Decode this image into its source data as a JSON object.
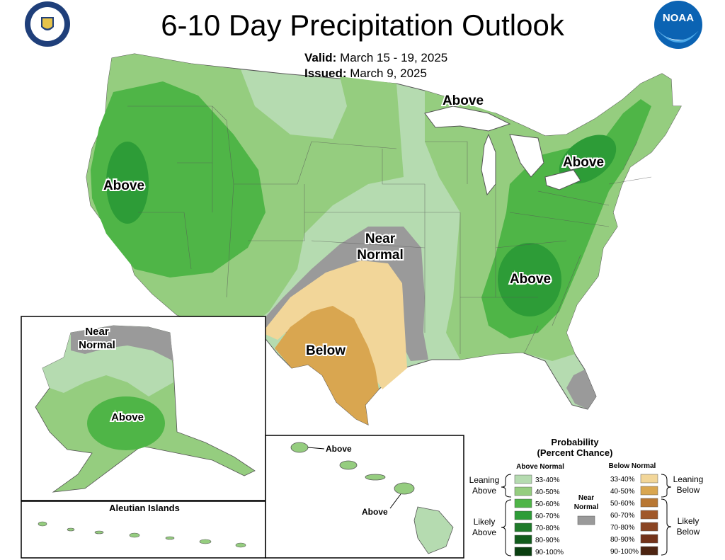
{
  "title": "6-10 Day Precipitation Outlook",
  "valid": {
    "label": "Valid:",
    "value": "March 15 - 19, 2025"
  },
  "issued": {
    "label": "Issued:",
    "value": "March 9, 2025"
  },
  "logos": {
    "left": "department-of-commerce-seal",
    "right": "noaa-logo",
    "noaa_text": "NOAA"
  },
  "colors": {
    "above_33_40": "#b5dbb0",
    "above_40_50": "#95cd7f",
    "above_50_60": "#4fb547",
    "above_60_70": "#2d9c37",
    "above_70_80": "#1f7a2a",
    "above_80_90": "#125c1c",
    "above_90_100": "#0a3f10",
    "near_normal": "#9a9a9a",
    "below_33_40": "#f2d699",
    "below_40_50": "#d9a650",
    "below_50_60": "#b87733",
    "below_60_70": "#a0582a",
    "below_70_80": "#8a4422",
    "below_80_90": "#73331a",
    "below_90_100": "#4d2411"
  },
  "map_labels": {
    "west_above": "Above",
    "great_lakes_above": "Above",
    "northeast_above": "Above",
    "southeast_above": "Above",
    "near_normal_line1": "Near",
    "near_normal_line2": "Normal",
    "south_below": "Below",
    "alaska_near_line1": "Near",
    "alaska_near_line2": "Normal",
    "alaska_above": "Above",
    "aleutian": "Aleutian Islands",
    "hawaii_above_1": "Above",
    "hawaii_above_2": "Above"
  },
  "legend": {
    "title_line1": "Probability",
    "title_line2": "(Percent Chance)",
    "above_header": "Above Normal",
    "below_header": "Below Normal",
    "near_line1": "Near",
    "near_line2": "Normal",
    "leaning_above_1": "Leaning",
    "leaning_above_2": "Above",
    "likely_above_1": "Likely",
    "likely_above_2": "Above",
    "leaning_below_1": "Leaning",
    "leaning_below_2": "Below",
    "likely_below_1": "Likely",
    "likely_below_2": "Below",
    "ranges": [
      "33-40%",
      "40-50%",
      "50-60%",
      "60-70%",
      "70-80%",
      "80-90%",
      "90-100%"
    ]
  }
}
